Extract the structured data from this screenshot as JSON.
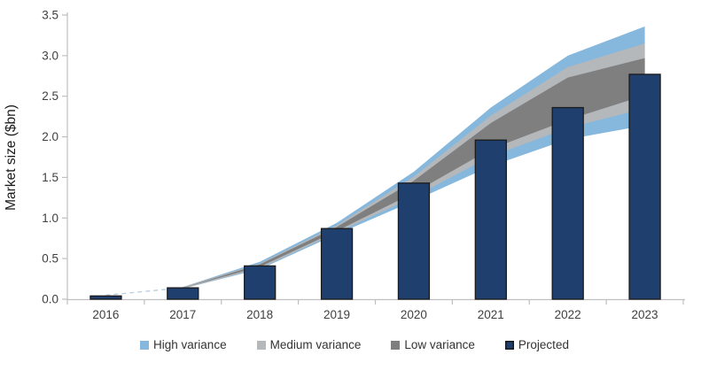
{
  "chart_data": {
    "type": "bar",
    "subtype": "bar-with-fan-variance-bands",
    "title": "",
    "xlabel": "",
    "ylabel": "Market size ($bn)",
    "ylim": [
      0,
      3.5
    ],
    "y_tick_values": [
      0.0,
      0.5,
      1.0,
      1.5,
      2.0,
      2.5,
      3.0,
      3.5
    ],
    "y_tick_labels": [
      "0.0",
      "0.5",
      "1.0",
      "1.5",
      "2.0",
      "2.5",
      "3.0",
      "3.5"
    ],
    "categories": [
      "2016",
      "2017",
      "2018",
      "2019",
      "2020",
      "2021",
      "2022",
      "2023"
    ],
    "grid": "off",
    "legend_position": "bottom-center",
    "bars": {
      "name": "Projected",
      "values": [
        0.04,
        0.14,
        0.41,
        0.87,
        1.43,
        1.96,
        2.36,
        2.77
      ],
      "fill_color": "#1F3F6E",
      "border_color": "#1A1A1A"
    },
    "bands": [
      {
        "name": "High variance",
        "color": "#86B7DD",
        "start_category": "2017",
        "start_index": 1,
        "upper": [
          0.15,
          0.46,
          0.94,
          1.57,
          2.36,
          3.0,
          3.36
        ],
        "lower": [
          0.13,
          0.37,
          0.8,
          1.21,
          1.64,
          1.97,
          2.14
        ]
      },
      {
        "name": "Medium variance",
        "color": "#B4B8BB",
        "start_category": "2017",
        "start_index": 1,
        "upper": [
          0.15,
          0.44,
          0.91,
          1.51,
          2.26,
          2.86,
          3.15
        ],
        "lower": [
          0.13,
          0.38,
          0.82,
          1.26,
          1.76,
          2.11,
          2.35
        ]
      },
      {
        "name": "Low variance",
        "color": "#7F7F7F",
        "start_category": "2017",
        "start_index": 1,
        "upper": [
          0.14,
          0.43,
          0.89,
          1.46,
          2.17,
          2.73,
          2.97
        ],
        "lower": [
          0.14,
          0.4,
          0.84,
          1.31,
          1.85,
          2.21,
          2.51
        ]
      }
    ],
    "dashed_connector": {
      "from_index": 0,
      "to_index": 1,
      "from_value": 0.05,
      "to_value": 0.14,
      "color": "#B9CDDF"
    },
    "axis_color": "#BFBFBF",
    "tick_text_color": "#404040",
    "legend": [
      {
        "label": "High variance",
        "color": "#86B7DD"
      },
      {
        "label": "Medium variance",
        "color": "#B4B8BB"
      },
      {
        "label": "Low variance",
        "color": "#7F7F7F"
      },
      {
        "label": "Projected",
        "color": "#1F3F6E",
        "border": "#1A1A1A"
      }
    ]
  }
}
